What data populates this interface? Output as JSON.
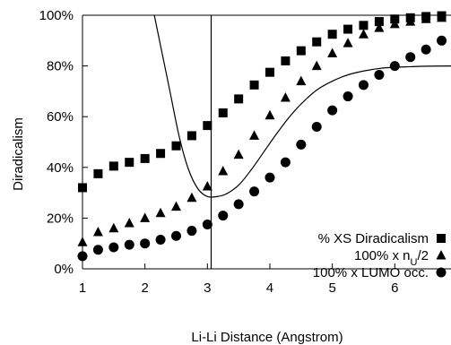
{
  "chart_data": {
    "type": "scatter",
    "xlabel": "Li-Li Distance (Angstrom)",
    "ylabel": "Diradicalism",
    "xlim": [
      1,
      6.9
    ],
    "ylim": [
      0,
      100
    ],
    "x_ticks": [
      1,
      2,
      3,
      4,
      5,
      6
    ],
    "x_tick_labels": [
      "1",
      "2",
      "3",
      "4",
      "5",
      "6"
    ],
    "y_ticks": [
      0,
      20,
      40,
      60,
      80,
      100
    ],
    "y_tick_labels": [
      "0%",
      "20%",
      "40%",
      "60%",
      "80%",
      "100%"
    ],
    "grid": false,
    "legend_position": "bottom-right",
    "vertical_line_x": 3.06,
    "series": [
      {
        "name": "% XS Diradicalism",
        "marker": "square",
        "color": "#000000",
        "x": [
          1.0,
          1.25,
          1.5,
          1.75,
          2.0,
          2.25,
          2.5,
          2.75,
          3.0,
          3.25,
          3.5,
          3.75,
          4.0,
          4.25,
          4.5,
          4.75,
          5.0,
          5.25,
          5.5,
          5.75,
          6.0,
          6.25,
          6.5,
          6.75
        ],
        "y": [
          32,
          37.5,
          40.5,
          42,
          43.5,
          45.5,
          48.5,
          52.5,
          56.5,
          61.5,
          67,
          72.5,
          77.5,
          82,
          86,
          89.5,
          92.5,
          94.5,
          96,
          97.5,
          98.5,
          99,
          99.5,
          99.8
        ]
      },
      {
        "name": "100% x nU/2",
        "marker": "triangle",
        "color": "#000000",
        "x": [
          1.0,
          1.25,
          1.5,
          1.75,
          2.0,
          2.25,
          2.5,
          2.75,
          3.0,
          3.25,
          3.5,
          3.75,
          4.0,
          4.25,
          4.5,
          4.75,
          5.0,
          5.25,
          5.5,
          5.75,
          6.0,
          6.25,
          6.5,
          6.75
        ],
        "y": [
          10.5,
          14.5,
          16,
          18,
          20,
          22,
          24.5,
          28,
          32.5,
          38.5,
          45,
          52.5,
          60.5,
          67.5,
          74,
          80,
          85,
          89,
          92.5,
          95,
          96.5,
          97.5,
          98.5,
          99
        ]
      },
      {
        "name": "100% x LUMO occ.",
        "marker": "circle",
        "color": "#000000",
        "x": [
          1.0,
          1.25,
          1.5,
          1.75,
          2.0,
          2.25,
          2.5,
          2.75,
          3.0,
          3.25,
          3.5,
          3.75,
          4.0,
          4.25,
          4.5,
          4.75,
          5.0,
          5.25,
          5.5,
          5.75,
          6.0,
          6.25,
          6.5,
          6.75
        ],
        "y": [
          5,
          7.5,
          8.5,
          9.5,
          10,
          11.5,
          13,
          15,
          17.5,
          21,
          25.5,
          30.5,
          36,
          42,
          49,
          56,
          62.5,
          68,
          72.5,
          76.5,
          80,
          83.5,
          86.5,
          90
        ]
      }
    ],
    "curve": {
      "x": [
        2.15,
        2.25,
        2.4,
        2.55,
        2.7,
        2.85,
        3.0,
        3.15,
        3.3,
        3.5,
        3.7,
        3.9,
        4.1,
        4.3,
        4.5,
        4.75,
        5.0,
        5.25,
        5.5,
        5.75,
        6.0,
        6.25,
        6.5,
        6.9
      ],
      "y": [
        100,
        88,
        70,
        52,
        39,
        31.5,
        28.5,
        28.5,
        29.5,
        33,
        39,
        46,
        53,
        59.5,
        65,
        70.5,
        74,
        76.5,
        78,
        79,
        79.5,
        79.7,
        79.9,
        80
      ]
    }
  },
  "legend_sub_text": "U"
}
